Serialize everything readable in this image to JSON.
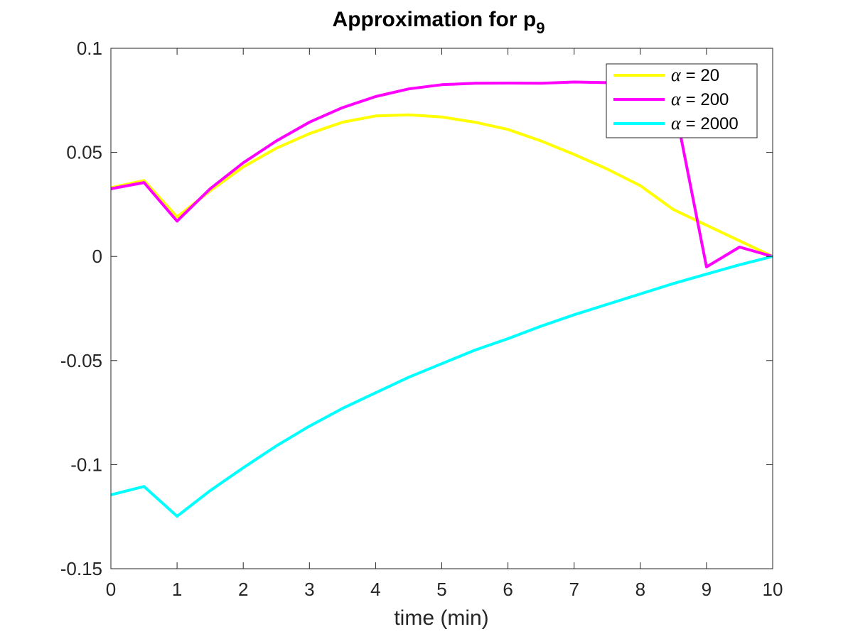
{
  "chart_data": {
    "type": "line",
    "title": "Approximation for p",
    "title_subscript": "9",
    "xlabel": "time (min)",
    "ylabel": "",
    "xlim": [
      0,
      10
    ],
    "ylim": [
      -0.15,
      0.1
    ],
    "x_ticks": [
      0,
      1,
      2,
      3,
      4,
      5,
      6,
      7,
      8,
      9,
      10
    ],
    "x_tick_labels": [
      "0",
      "1",
      "2",
      "3",
      "4",
      "5",
      "6",
      "7",
      "8",
      "9",
      "10"
    ],
    "y_ticks": [
      -0.15,
      -0.1,
      -0.05,
      0,
      0.05,
      0.1
    ],
    "y_tick_labels": [
      "-0.15",
      "-0.1",
      "-0.05",
      "0",
      "0.05",
      "0.1"
    ],
    "grid": false,
    "legend_position": "top-right",
    "x": [
      0,
      0.5,
      1,
      1.5,
      2,
      2.5,
      3,
      3.5,
      4,
      4.5,
      5,
      5.5,
      6,
      6.5,
      7,
      7.5,
      8,
      8.5,
      9,
      9.5,
      10
    ],
    "series": [
      {
        "name": "α = 20",
        "legend_symbol": "α",
        "legend_value": "= 20",
        "color": "#ffff00",
        "values": [
          0.033,
          0.0365,
          0.019,
          0.0315,
          0.043,
          0.052,
          0.059,
          0.0645,
          0.0675,
          0.068,
          0.067,
          0.0645,
          0.061,
          0.0555,
          0.049,
          0.042,
          0.034,
          0.0225,
          0.015,
          0.0075,
          0.0
        ]
      },
      {
        "name": "α = 200",
        "legend_symbol": "α",
        "legend_value": "= 200",
        "color": "#ff00ff",
        "values": [
          0.0325,
          0.0355,
          0.017,
          0.0325,
          0.045,
          0.0555,
          0.0645,
          0.0715,
          0.0768,
          0.0805,
          0.0825,
          0.0832,
          0.0833,
          0.0832,
          0.0838,
          0.0835,
          0.0835,
          0.0755,
          -0.005,
          0.0045,
          0.0
        ]
      },
      {
        "name": "α = 2000",
        "legend_symbol": "α",
        "legend_value": "= 2000",
        "color": "#00ffff",
        "values": [
          -0.1145,
          -0.1105,
          -0.1248,
          -0.1125,
          -0.1015,
          -0.091,
          -0.0815,
          -0.073,
          -0.0655,
          -0.058,
          -0.0515,
          -0.045,
          -0.0395,
          -0.0335,
          -0.028,
          -0.023,
          -0.018,
          -0.013,
          -0.0085,
          -0.004,
          0.0
        ]
      }
    ]
  }
}
